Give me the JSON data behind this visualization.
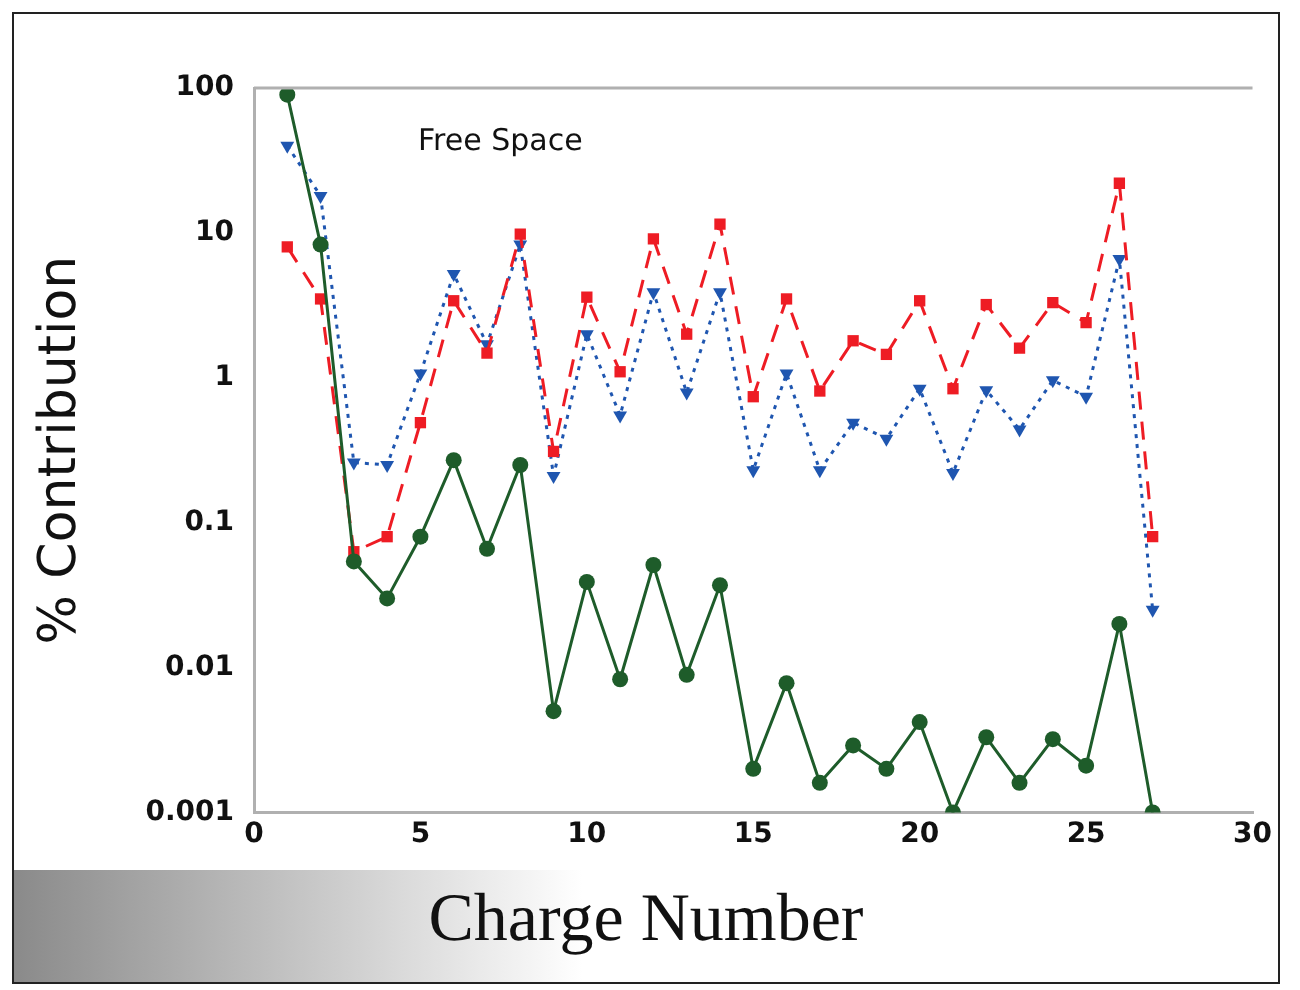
{
  "chart_data": {
    "type": "line",
    "xlabel": "Charge Number",
    "ylabel": "% Contribution",
    "annotations": [
      "Free Space"
    ],
    "x": [
      1,
      2,
      3,
      4,
      5,
      6,
      7,
      8,
      9,
      10,
      11,
      12,
      13,
      14,
      15,
      16,
      17,
      18,
      19,
      20,
      21,
      22,
      23,
      24,
      25,
      26,
      27
    ],
    "series": [
      {
        "color": "#1e5c2a",
        "marker": "circle",
        "line_style": "solid",
        "values": [
          90,
          8.3,
          0.054,
          0.03,
          0.08,
          0.27,
          0.066,
          0.25,
          0.005,
          0.039,
          0.0083,
          0.051,
          0.0089,
          0.037,
          0.002,
          0.0078,
          0.0016,
          0.0029,
          0.002,
          0.0042,
          0.001,
          0.0033,
          0.0016,
          0.0032,
          0.0021,
          0.02,
          0.001
        ]
      },
      {
        "color": "#ee1c24",
        "marker": "square",
        "line_style": "dashed",
        "values": [
          8,
          3.5,
          0.063,
          0.08,
          0.49,
          3.4,
          1.48,
          9.8,
          0.31,
          3.6,
          1.1,
          9.1,
          2,
          11.5,
          0.74,
          3.5,
          0.81,
          1.8,
          1.45,
          3.4,
          0.84,
          3.2,
          1.6,
          3.3,
          2.4,
          22,
          0.08
        ]
      },
      {
        "color": "#1f56b0",
        "marker": "triangle",
        "line_style": "dotted",
        "values": [
          40,
          18,
          0.26,
          0.25,
          1.07,
          5.2,
          1.7,
          8.3,
          0.21,
          2,
          0.55,
          3.9,
          0.79,
          3.9,
          0.23,
          1.07,
          0.23,
          0.49,
          0.38,
          0.84,
          0.22,
          0.82,
          0.44,
          0.96,
          0.74,
          6.6,
          0.025
        ]
      }
    ],
    "log": "y",
    "xlim": [
      0,
      30
    ],
    "xticks": [
      0,
      5,
      10,
      15,
      20,
      25,
      30
    ],
    "ylim": [
      0.001,
      100
    ],
    "yticks": [
      0.001,
      0.01,
      0.1,
      1,
      10,
      100
    ],
    "grid": false,
    "legend": false
  }
}
